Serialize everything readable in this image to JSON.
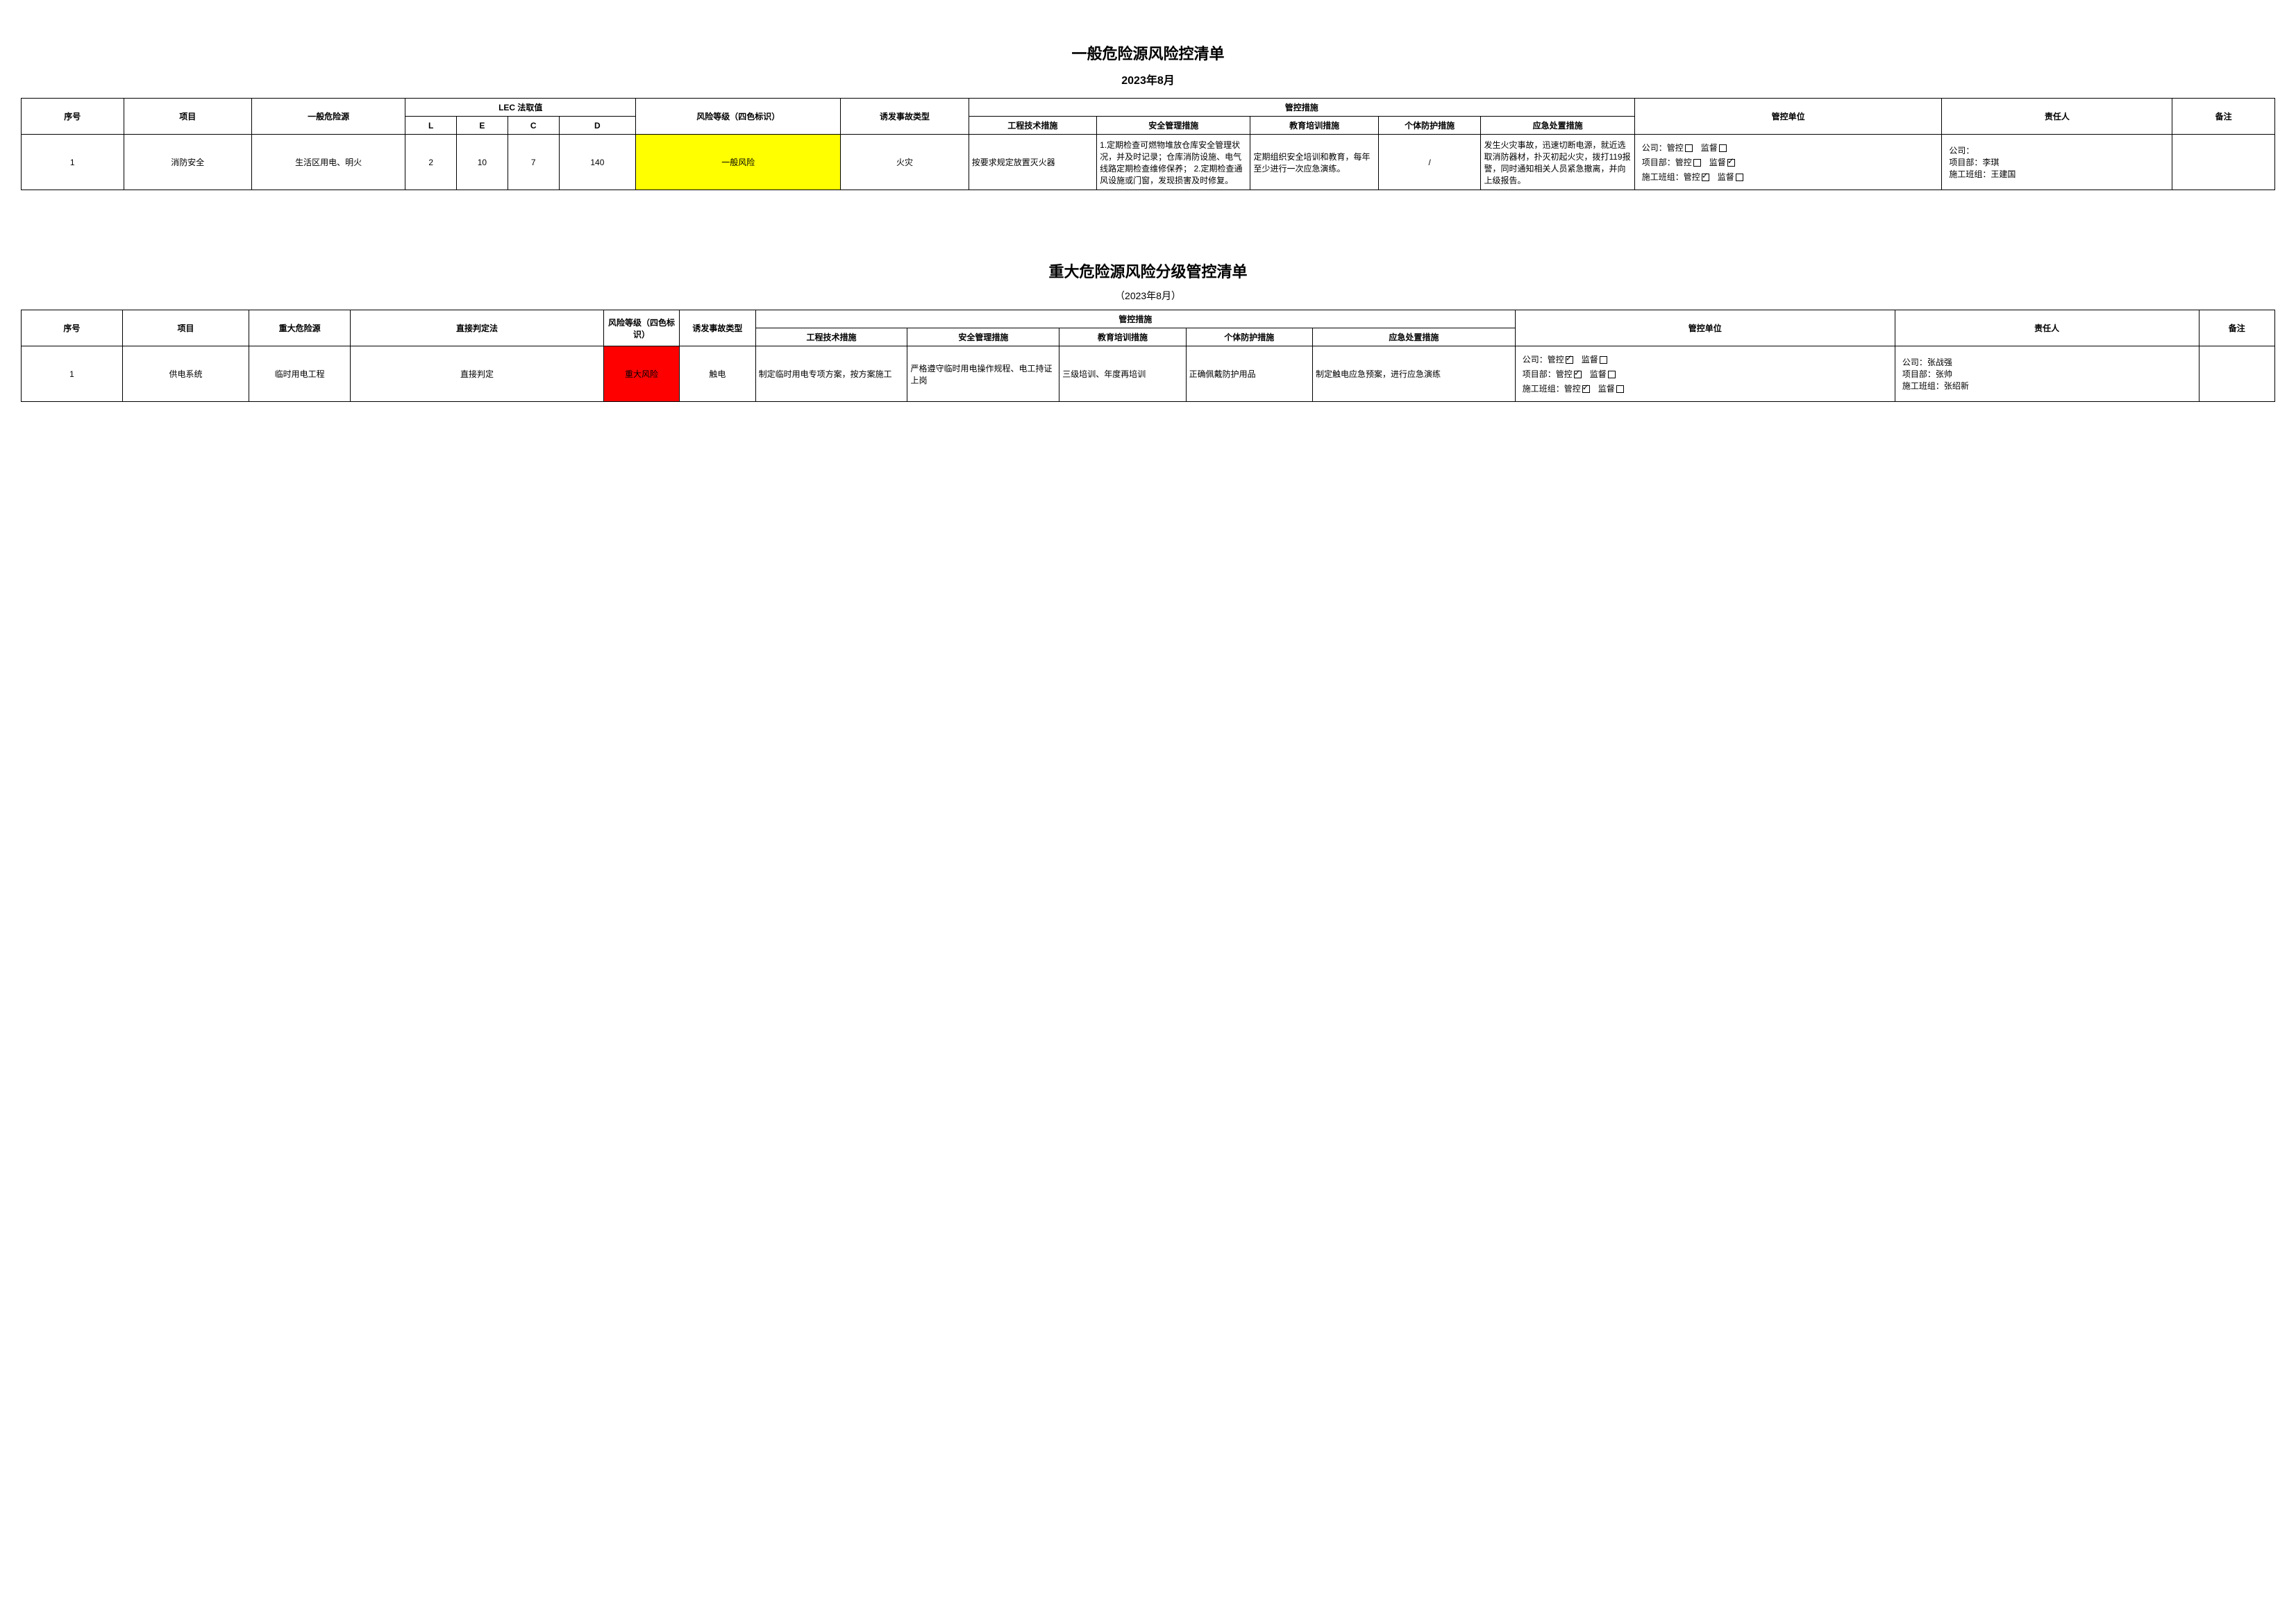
{
  "table1": {
    "title": "一般危险源风险控清单",
    "date": "2023年8月",
    "headers": {
      "seq": "序号",
      "project": "项目",
      "source": "一般危险源",
      "lec_group": "LEC 法取值",
      "L": "L",
      "E": "E",
      "C": "C",
      "D": "D",
      "risk_level": "风险等级（四色标识）",
      "incident": "诱发事故类型",
      "control_group": "管控措施",
      "eng": "工程技术措施",
      "mgmt": "安全管理措施",
      "edu": "教育培训措施",
      "ppe": "个体防护措施",
      "emergency": "应急处置措施",
      "unit": "管控单位",
      "resp": "责任人",
      "remark": "备注"
    },
    "row": {
      "seq": "1",
      "project": "消防安全",
      "source": "生活区用电、明火",
      "L": "2",
      "E": "10",
      "C": "7",
      "D": "140",
      "risk_level": "一般风险",
      "incident": "火灾",
      "eng": "按要求规定放置灭火器",
      "mgmt": "1.定期检查可燃物堆放仓库安全管理状况，并及时记录；仓库消防设施、电气线路定期检查维修保养；\n2.定期检查通风设施或门窗，发现损害及时修复。",
      "edu": "定期组织安全培训和教育，每年至少进行一次应急演练。",
      "ppe": "/",
      "emergency": "发生火灾事故，迅速切断电源，就近选取消防器材，扑灭初起火灾，拨打119报警，同时通知相关人员紧急撤离，并向上级报告。",
      "unit_lines": [
        {
          "label": "公司：",
          "gk": false,
          "jd": false
        },
        {
          "label": "项目部：",
          "gk": false,
          "jd": true
        },
        {
          "label": "施工班组：",
          "gk": true,
          "jd": false
        }
      ],
      "resp": [
        "公司：",
        "项目部：李琪",
        "施工班组：王建国"
      ],
      "remark": ""
    }
  },
  "table2": {
    "title": "重大危险源风险分级管控清单",
    "date": "（2023年8月）",
    "headers": {
      "seq": "序号",
      "project": "项目",
      "source": "重大危险源",
      "method": "直接判定法",
      "risk_level": "风险等级（四色标识）",
      "incident": "诱发事故类型",
      "control_group": "管控措施",
      "eng": "工程技术措施",
      "mgmt": "安全管理措施",
      "edu": "教育培训措施",
      "ppe": "个体防护措施",
      "emergency": "应急处置措施",
      "unit": "管控单位",
      "resp": "责任人",
      "remark": "备注"
    },
    "row": {
      "seq": "1",
      "project": "供电系统",
      "source": "临时用电工程",
      "method": "直接判定",
      "risk_level": "重大风险",
      "incident": "触电",
      "eng": "制定临时用电专项方案，按方案施工",
      "mgmt": "严格遵守临时用电操作规程、电工持证上岗",
      "edu": "三级培训、年度再培训",
      "ppe": "正确佩戴防护用品",
      "emergency": "制定触电应急预案，进行应急演练",
      "unit_lines": [
        {
          "label": "公司：",
          "gk": true,
          "jd": false
        },
        {
          "label": "项目部：",
          "gk": true,
          "jd": false
        },
        {
          "label": "施工班组：",
          "gk": true,
          "jd": false
        }
      ],
      "resp": [
        "公司：张战强",
        "项目部：张帅",
        "施工班组：张绍新"
      ],
      "remark": ""
    }
  },
  "labels": {
    "gk": "管控",
    "jd": "监督"
  }
}
